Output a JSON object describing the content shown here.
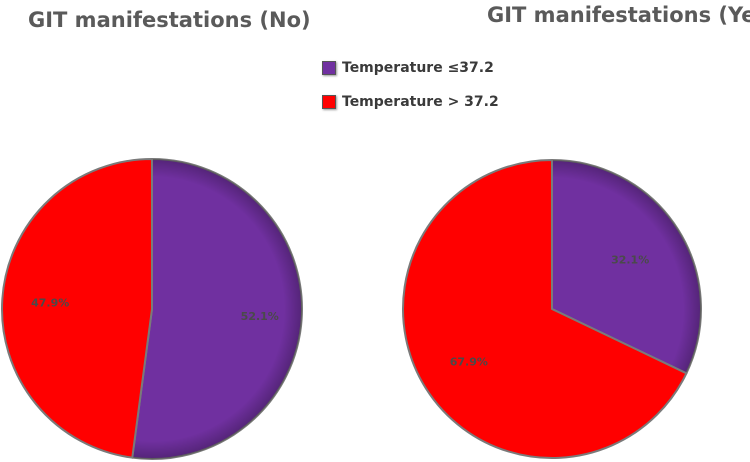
{
  "chart_data": [
    {
      "type": "pie",
      "title": "GIT manifestations (No)",
      "categories": [
        "Temperature ≤37.2",
        "Temperature > 37.2"
      ],
      "values": [
        52.1,
        47.9
      ],
      "labels": [
        "52.1%",
        "47.9%"
      ],
      "colors": [
        "#7030A0",
        "#FF0000"
      ],
      "legend": "top-center"
    },
    {
      "type": "pie",
      "title": "GIT manifestations (Yes)",
      "categories": [
        "Temperature ≤37.2",
        "Temperature > 37.2"
      ],
      "values": [
        32.1,
        67.9
      ],
      "labels": [
        "32.1%",
        "67.9%"
      ],
      "colors": [
        "#7030A0",
        "#FF0000"
      ],
      "legend": "top-center"
    }
  ],
  "legend": {
    "items": [
      {
        "label": "Temperature ≤37.2",
        "color": "#7030A0"
      },
      {
        "label": "Temperature > 37.2",
        "color": "#FF0000"
      }
    ]
  }
}
